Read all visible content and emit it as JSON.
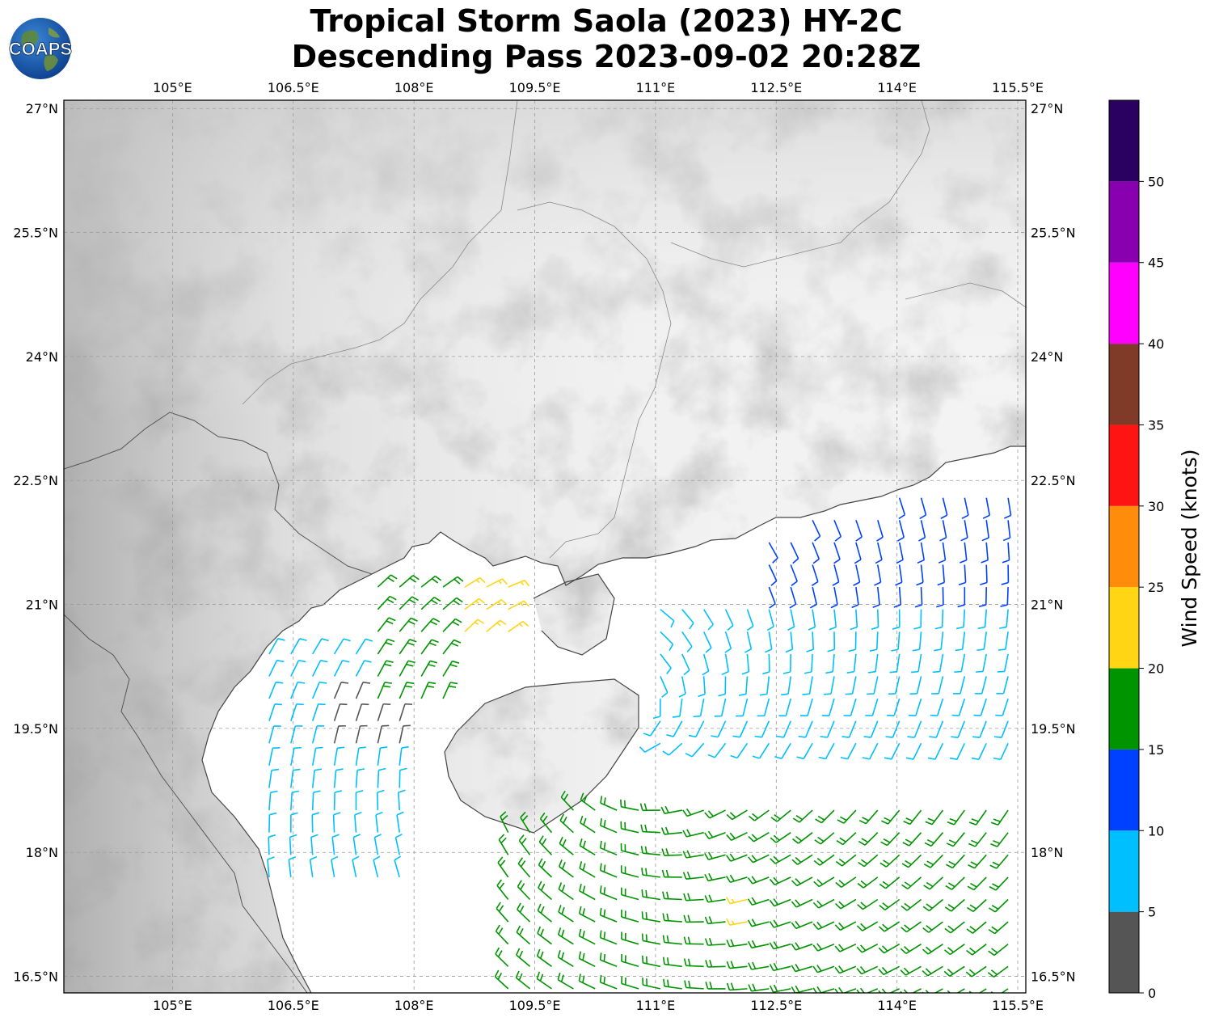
{
  "title": {
    "line1": "Tropical Storm Saola (2023) HY-2C",
    "line2": "Descending Pass 2023-09-02 20:28Z"
  },
  "logo": {
    "text": "COAPS"
  },
  "map": {
    "lon_range": [
      103.65,
      115.6
    ],
    "lat_range": [
      16.3,
      27.1
    ],
    "lon_ticks": [
      "105°E",
      "106.5°E",
      "108°E",
      "109.5°E",
      "111°E",
      "112.5°E",
      "114°E",
      "115.5°E"
    ],
    "lon_tick_values": [
      105,
      106.5,
      108,
      109.5,
      111,
      112.5,
      114,
      115.5
    ],
    "lat_ticks": [
      "27°N",
      "25.5°N",
      "24°N",
      "22.5°N",
      "21°N",
      "19.5°N",
      "18°N",
      "16.5°N"
    ],
    "lat_tick_values": [
      27,
      25.5,
      24,
      22.5,
      21,
      19.5,
      18,
      16.5
    ]
  },
  "colorbar": {
    "label": "Wind Speed (knots)",
    "ticks": [
      "0",
      "5",
      "10",
      "15",
      "20",
      "25",
      "30",
      "35",
      "40",
      "45",
      "50"
    ],
    "bins": [
      {
        "min": 0,
        "max": 5,
        "color": "#555555"
      },
      {
        "min": 5,
        "max": 10,
        "color": "#00bfff"
      },
      {
        "min": 10,
        "max": 15,
        "color": "#0040ff"
      },
      {
        "min": 15,
        "max": 20,
        "color": "#009400"
      },
      {
        "min": 20,
        "max": 25,
        "color": "#ffd514"
      },
      {
        "min": 25,
        "max": 30,
        "color": "#ff8c0a"
      },
      {
        "min": 30,
        "max": 35,
        "color": "#ff1414"
      },
      {
        "min": 35,
        "max": 40,
        "color": "#7f3a28"
      },
      {
        "min": 40,
        "max": 45,
        "color": "#ff00ff"
      },
      {
        "min": 45,
        "max": 50,
        "color": "#8800b0"
      },
      {
        "min": 50,
        "max": 55,
        "color": "#2a0060"
      }
    ]
  },
  "wind_field": {
    "center": [
      110.6,
      19.7
    ],
    "zones": [
      {
        "name": "gulf-of-tonkin-west",
        "lon": [
          106.2,
          107.9
        ],
        "lat": [
          17.6,
          20.4
        ],
        "speed": 7
      },
      {
        "name": "tonkin-calm",
        "lon": [
          106.9,
          108.0
        ],
        "lat": [
          19.2,
          20.0
        ],
        "speed": 3
      },
      {
        "name": "gulf-north",
        "lon": [
          107.4,
          108.4
        ],
        "lat": [
          19.6,
          21.3
        ],
        "speed": 16
      },
      {
        "name": "qiongzhou-strait",
        "lon": [
          108.6,
          109.4
        ],
        "lat": [
          20.4,
          21.3
        ],
        "speed": 23
      },
      {
        "name": "east-of-hainan",
        "lon": [
          110.8,
          115.5
        ],
        "lat": [
          19.2,
          21.2
        ],
        "speed": 8
      },
      {
        "name": "north-band",
        "lon": [
          112.4,
          115.5
        ],
        "lat": [
          21.0,
          22.4
        ],
        "speed": 14
      },
      {
        "name": "south-band",
        "lon": [
          109.0,
          115.5
        ],
        "lat": [
          16.3,
          18.6
        ],
        "speed": 16
      },
      {
        "name": "core-south",
        "lon": [
          111.9,
          112.3
        ],
        "lat": [
          16.9,
          17.5
        ],
        "speed": 22
      }
    ]
  }
}
